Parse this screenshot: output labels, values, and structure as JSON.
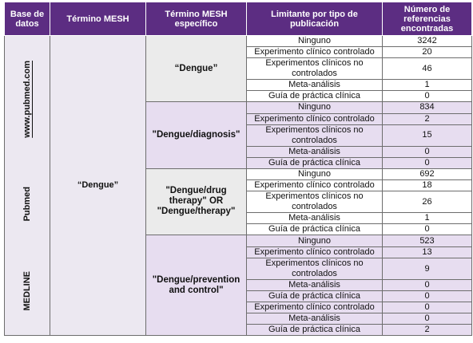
{
  "header": [
    "Base de datos",
    "Término MESH",
    "Término MESH específico",
    "Limitante por tipo de publicación",
    "Número de referencias encontradas"
  ],
  "databases": [
    "www.pubmed.com",
    "Pubmed",
    "MEDLINE"
  ],
  "mesh_term": "“Dengue”",
  "groups": [
    {
      "term": "“Dengue”",
      "rows": [
        [
          "Ninguno",
          "3242"
        ],
        [
          "Experimento clínico controlado",
          "20"
        ],
        [
          "Experimentos clínicos no controlados",
          "46"
        ],
        [
          "Meta-análisis",
          "1"
        ],
        [
          "Guía de práctica clínica",
          "0"
        ]
      ]
    },
    {
      "term": "\"Dengue/diagnosis\"",
      "rows": [
        [
          "Ninguno",
          "834"
        ],
        [
          "Experimento clínico controlado",
          "2"
        ],
        [
          "Experimentos clínicos no controlados",
          "15"
        ],
        [
          "Meta-análisis",
          "0"
        ],
        [
          "Guía de práctica clínica",
          "0"
        ]
      ]
    },
    {
      "term": "\"Dengue/drug therapy\" OR \"Dengue/therapy\"",
      "rows": [
        [
          "Ninguno",
          "692"
        ],
        [
          "Experimento clínico controlado",
          "18"
        ],
        [
          "Experimentos clínicos no controlados",
          "26"
        ],
        [
          "Meta-análisis",
          "1"
        ],
        [
          "Guía de práctica clínica",
          "0"
        ]
      ]
    },
    {
      "term": "\"Dengue/prevention and control\"",
      "rows": [
        [
          "Ninguno",
          "523"
        ],
        [
          "Experimento clínico controlado",
          "13"
        ],
        [
          "Experimentos clínicos no controlados",
          "9"
        ],
        [
          "Meta-análisis",
          "0"
        ],
        [
          "Guía de práctica clínica",
          "0"
        ],
        [
          "Experimento clínico controlado",
          "0"
        ],
        [
          "Meta-análisis",
          "0"
        ],
        [
          "Guía de práctica clínica",
          "2"
        ]
      ]
    }
  ]
}
